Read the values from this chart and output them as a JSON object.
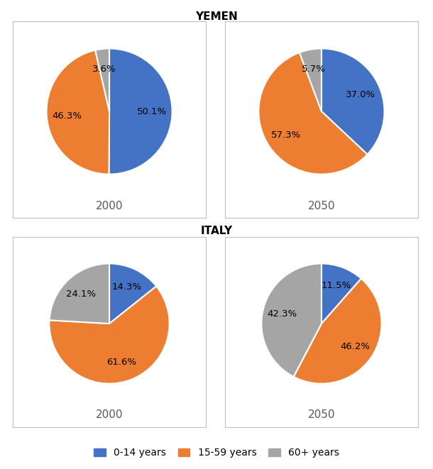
{
  "title_yemen": "YEMEN",
  "title_italy": "ITALY",
  "yemen_2000": {
    "values": [
      50.1,
      46.3,
      3.6
    ],
    "labels": [
      "50.1%",
      "46.3%",
      "3.6%"
    ],
    "colors": [
      "#4472C4",
      "#ED7D31",
      "#A5A5A5"
    ],
    "year": "2000"
  },
  "yemen_2050": {
    "values": [
      37.0,
      57.3,
      5.7
    ],
    "labels": [
      "37.0%",
      "57.3%",
      "5.7%"
    ],
    "colors": [
      "#4472C4",
      "#ED7D31",
      "#A5A5A5"
    ],
    "year": "2050"
  },
  "italy_2000": {
    "values": [
      14.3,
      61.6,
      24.1
    ],
    "labels": [
      "14.3%",
      "61.6%",
      "24.1%"
    ],
    "colors": [
      "#4472C4",
      "#ED7D31",
      "#A5A5A5"
    ],
    "year": "2000"
  },
  "italy_2050": {
    "values": [
      11.5,
      46.2,
      42.3
    ],
    "labels": [
      "11.5%",
      "46.2%",
      "42.3%"
    ],
    "colors": [
      "#4472C4",
      "#ED7D31",
      "#A5A5A5"
    ],
    "year": "2050"
  },
  "legend_labels": [
    "0-14 years",
    "15-59 years",
    "60+ years"
  ],
  "legend_colors": [
    "#4472C4",
    "#ED7D31",
    "#A5A5A5"
  ],
  "label_fontsize": 9.5,
  "year_fontsize": 11,
  "title_fontsize": 11,
  "background_color": "#FFFFFF"
}
